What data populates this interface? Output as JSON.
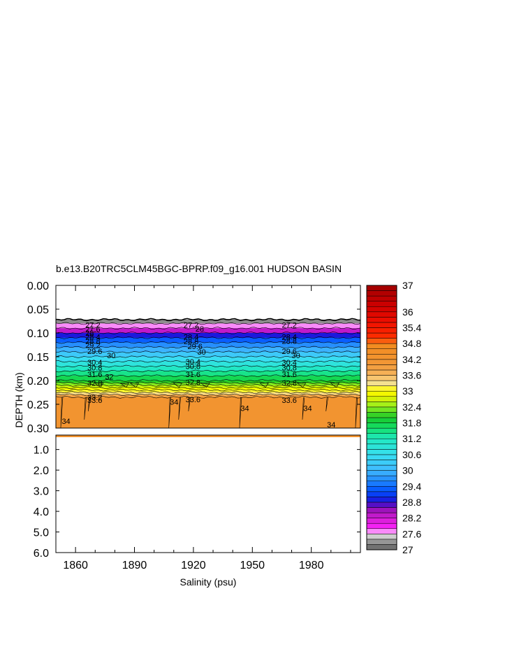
{
  "chart_data": {
    "type": "heatmap",
    "title": "b.e13.B20TRC5CLM45BGC-BPRP.f09_g16.001 HUDSON BASIN",
    "xlabel": "Salinity (psu)",
    "ylabel": "DEPTH (km)",
    "x_ticks": [
      "1860",
      "1890",
      "1920",
      "1950",
      "1980"
    ],
    "x_tick_values": [
      1860,
      1890,
      1920,
      1950,
      1980
    ],
    "xlim": [
      1850,
      2005
    ],
    "y_upper": {
      "ylim": [
        0.0,
        0.3
      ],
      "ticks": [
        "0.00",
        "0.05",
        "0.10",
        "0.15",
        "0.20",
        "0.25",
        "0.30"
      ],
      "tick_values": [
        0.0,
        0.05,
        0.1,
        0.15,
        0.2,
        0.25,
        0.3
      ]
    },
    "y_lower": {
      "ylim": [
        0.3,
        6.0
      ],
      "ticks": [
        "1.0",
        "2.0",
        "3.0",
        "4.0",
        "5.0",
        "6.0"
      ],
      "tick_values": [
        1.0,
        2.0,
        3.0,
        4.0,
        5.0,
        6.0
      ]
    },
    "colorbar": {
      "range": [
        27,
        37
      ],
      "labels": [
        "37",
        "36",
        "35.4",
        "34.8",
        "34.2",
        "33.6",
        "33",
        "32.4",
        "31.8",
        "31.2",
        "30.6",
        "30",
        "29.4",
        "28.8",
        "28.2",
        "27.6",
        "27"
      ],
      "label_values": [
        37,
        36,
        35.4,
        34.8,
        34.2,
        33.6,
        33,
        32.4,
        31.8,
        31.2,
        30.6,
        30,
        29.4,
        28.8,
        28.2,
        27.6,
        27
      ]
    },
    "profile": {
      "depth_km": [
        0.072,
        0.08,
        0.09,
        0.1,
        0.11,
        0.12,
        0.13,
        0.14,
        0.15,
        0.16,
        0.17,
        0.18,
        0.19,
        0.2,
        0.205,
        0.21,
        0.215,
        0.22,
        0.225,
        0.23,
        0.235,
        0.3
      ],
      "salinity_psu": [
        27.1,
        27.4,
        28.0,
        28.6,
        29.1,
        29.5,
        29.8,
        30.1,
        30.4,
        30.7,
        31.0,
        31.3,
        31.6,
        31.9,
        32.2,
        32.5,
        32.8,
        33.0,
        33.2,
        33.5,
        34.2,
        34.3
      ]
    },
    "contour_labels": [
      {
        "text": "27.2",
        "x": 1865,
        "depth": 0.083
      },
      {
        "text": "27.6",
        "x": 1865,
        "depth": 0.092
      },
      {
        "text": "28",
        "x": 1865,
        "depth": 0.1
      },
      {
        "text": "28.4",
        "x": 1865,
        "depth": 0.108
      },
      {
        "text": "28.8",
        "x": 1865,
        "depth": 0.117
      },
      {
        "text": "29.2",
        "x": 1865,
        "depth": 0.126
      },
      {
        "text": "29.6",
        "x": 1866,
        "depth": 0.138
      },
      {
        "text": "30",
        "x": 1876,
        "depth": 0.147
      },
      {
        "text": "30.4",
        "x": 1866,
        "depth": 0.162
      },
      {
        "text": "30.8",
        "x": 1866,
        "depth": 0.173
      },
      {
        "text": "31.6",
        "x": 1866,
        "depth": 0.187
      },
      {
        "text": "32",
        "x": 1875,
        "depth": 0.192
      },
      {
        "text": "32.8",
        "x": 1866,
        "depth": 0.205
      },
      {
        "text": "33.2",
        "x": 1866,
        "depth": 0.235
      },
      {
        "text": "33.6",
        "x": 1866,
        "depth": 0.241
      },
      {
        "text": "34",
        "x": 1853,
        "depth": 0.285
      },
      {
        "text": "27.2",
        "x": 1915,
        "depth": 0.083
      },
      {
        "text": "28",
        "x": 1921,
        "depth": 0.091
      },
      {
        "text": "28.4",
        "x": 1915,
        "depth": 0.108
      },
      {
        "text": "28.8",
        "x": 1915,
        "depth": 0.118
      },
      {
        "text": "29.6",
        "x": 1917,
        "depth": 0.128
      },
      {
        "text": "30",
        "x": 1922,
        "depth": 0.14
      },
      {
        "text": "30.4",
        "x": 1916,
        "depth": 0.16
      },
      {
        "text": "30.8",
        "x": 1916,
        "depth": 0.17
      },
      {
        "text": "31.6",
        "x": 1916,
        "depth": 0.187
      },
      {
        "text": "32.8",
        "x": 1916,
        "depth": 0.204
      },
      {
        "text": "34",
        "x": 1908,
        "depth": 0.245
      },
      {
        "text": "33.6",
        "x": 1916,
        "depth": 0.24
      },
      {
        "text": "34",
        "x": 1944,
        "depth": 0.258
      },
      {
        "text": "27.2",
        "x": 1965,
        "depth": 0.083
      },
      {
        "text": "28.4",
        "x": 1965,
        "depth": 0.108
      },
      {
        "text": "28.8",
        "x": 1965,
        "depth": 0.117
      },
      {
        "text": "29.6",
        "x": 1965,
        "depth": 0.138
      },
      {
        "text": "30",
        "x": 1970,
        "depth": 0.147
      },
      {
        "text": "30.4",
        "x": 1965,
        "depth": 0.162
      },
      {
        "text": "30.8",
        "x": 1965,
        "depth": 0.173
      },
      {
        "text": "31.6",
        "x": 1965,
        "depth": 0.187
      },
      {
        "text": "32.8",
        "x": 1965,
        "depth": 0.205
      },
      {
        "text": "33.6",
        "x": 1965,
        "depth": 0.241
      },
      {
        "text": "34",
        "x": 1976,
        "depth": 0.258
      },
      {
        "text": "34",
        "x": 1988,
        "depth": 0.293
      }
    ]
  }
}
